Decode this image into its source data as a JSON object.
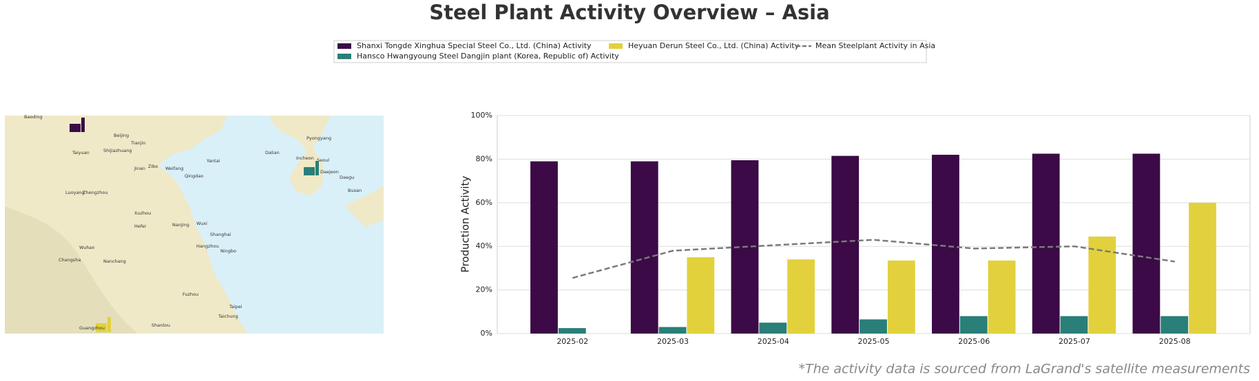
{
  "chart_data": {
    "type": "bar",
    "title": "Steel Plant Activity Overview – Asia",
    "ylabel": "Production Activity",
    "footnote": "*The activity data is sourced from LaGrand's satellite measurements",
    "categories": [
      "2025-02",
      "2025-03",
      "2025-04",
      "2025-05",
      "2025-06",
      "2025-07",
      "2025-08"
    ],
    "series": [
      {
        "name": "Shanxi Tongde Xinghua Special Steel Co., Ltd. (China) Activity",
        "color": "#3b0a47",
        "values": [
          79,
          79,
          79.5,
          81.5,
          82,
          82.5,
          82.5
        ]
      },
      {
        "name": "Hansco Hwangyoung Steel Dangjin plant (Korea, Republic of) Activity",
        "color": "#2a7f78",
        "values": [
          2.5,
          3,
          5,
          6.5,
          8,
          8,
          8
        ]
      },
      {
        "name": "Heyuan Derun Steel Co., Ltd. (China) Activity",
        "color": "#e2d13c",
        "values": [
          null,
          35,
          34,
          33.5,
          33.5,
          44.5,
          60
        ]
      },
      {
        "name": "Mean Steelplant Activity in Asia",
        "color": "#7a7a7a",
        "kind": "line",
        "dash": true,
        "values": [
          25.5,
          38,
          40.5,
          43,
          39,
          40,
          33
        ]
      }
    ],
    "ylim": [
      0,
      100
    ],
    "yticks": [
      {
        "value": 0,
        "label": "0%"
      },
      {
        "value": 20,
        "label": "20%"
      },
      {
        "value": 40,
        "label": "40%"
      },
      {
        "value": 60,
        "label": "60%"
      },
      {
        "value": 80,
        "label": "80%"
      },
      {
        "value": 100,
        "label": "100%"
      }
    ],
    "grid": true
  },
  "map": {
    "labels": [
      "Baoding",
      "Beijing",
      "Tianjin",
      "Shijiazhuang",
      "Taiyuan",
      "Jinan",
      "Zibo",
      "Weifang",
      "Qingdao",
      "Yantai",
      "Dalian",
      "Pyongyang",
      "Seoul",
      "Incheon",
      "Daejeon",
      "Daegu",
      "Busan",
      "Zhengzhou",
      "Luoyang",
      "Xuzhou",
      "Hefei",
      "Nanjing",
      "Wuxi",
      "Shanghai",
      "Hangzhou",
      "Ningbo",
      "Wuhan",
      "Changsha",
      "Nanchang",
      "Fuzhou",
      "Taipei",
      "Taichung",
      "Guangzhou",
      "Shantou"
    ]
  }
}
